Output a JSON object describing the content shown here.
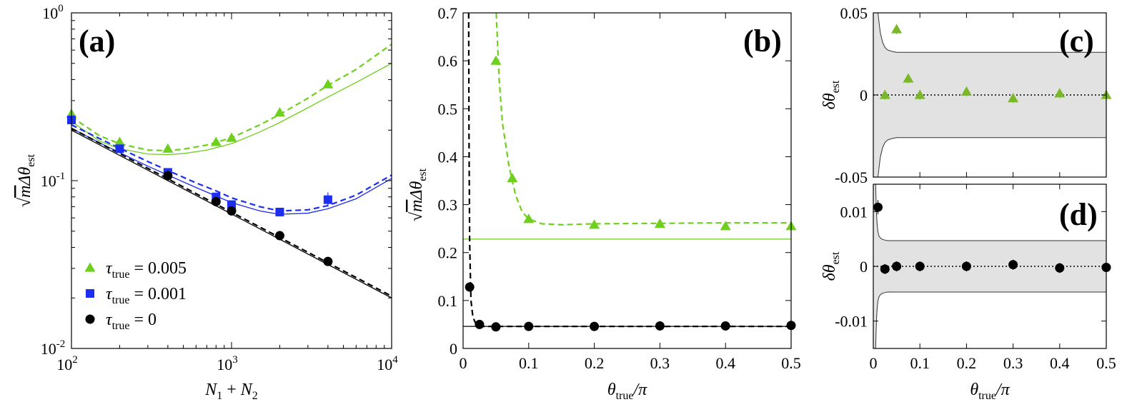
{
  "colors": {
    "green": "#6ecf1c",
    "blue": "#1c2ef0",
    "black": "#000000",
    "band": "#e2e2e2"
  },
  "chart_data": [
    {
      "panel": "(a)",
      "type": "scatter",
      "xscale": "log",
      "yscale": "log",
      "xlim": [
        100,
        10000
      ],
      "ylim": [
        0.01,
        1
      ],
      "x_ticks": [
        {
          "base": "10",
          "exp": "2"
        },
        {
          "base": "10",
          "exp": "3"
        },
        {
          "base": "10",
          "exp": "4"
        }
      ],
      "y_ticks": [
        {
          "base": "10",
          "exp": "-2"
        },
        {
          "base": "10",
          "exp": "-1"
        },
        {
          "base": "10",
          "exp": "0"
        }
      ],
      "xlabel": "N1 + N2",
      "ylabel": "√m Δθest",
      "legend": [
        {
          "label": "τtrue = 0.005",
          "var": "τ",
          "sub": "true",
          "rest": " = 0.005",
          "marker": "triangle",
          "color": "green"
        },
        {
          "label": "τtrue = 0.001",
          "var": "τ",
          "sub": "true",
          "rest": " = 0.001",
          "marker": "square",
          "color": "blue"
        },
        {
          "label": "τtrue = 0",
          "var": "τ",
          "sub": "true",
          "rest": " = 0",
          "marker": "circle",
          "color": "black"
        }
      ],
      "series": [
        {
          "name": "τtrue = 0.005",
          "marker": "triangle",
          "color": "green",
          "x": [
            100,
            200,
            400,
            800,
            1000,
            2000,
            4000
          ],
          "y": [
            0.25,
            0.17,
            0.155,
            0.17,
            0.18,
            0.255,
            0.375
          ],
          "fit_dashed": {
            "x": [
              100,
              150,
              200,
              300,
              400,
              500,
              700,
              1000,
              1500,
              2000,
              3000,
              4000,
              6000,
              10000
            ],
            "y": [
              0.24,
              0.185,
              0.166,
              0.152,
              0.151,
              0.154,
              0.163,
              0.18,
              0.215,
              0.248,
              0.31,
              0.37,
              0.46,
              0.65
            ]
          },
          "fit_solid": {
            "x": [
              100,
              150,
              200,
              300,
              400,
              500,
              700,
              1000,
              1500,
              2000,
              3000,
              4000,
              6000,
              10000
            ],
            "y": [
              0.225,
              0.172,
              0.155,
              0.144,
              0.143,
              0.145,
              0.152,
              0.166,
              0.195,
              0.222,
              0.272,
              0.315,
              0.385,
              0.5
            ]
          }
        },
        {
          "name": "τtrue = 0.001",
          "marker": "square",
          "color": "blue",
          "x": [
            100,
            200,
            400,
            800,
            1000,
            2000,
            4000
          ],
          "y": [
            0.23,
            0.155,
            0.112,
            0.08,
            0.072,
            0.065,
            0.077
          ],
          "fit_dashed": {
            "x": [
              100,
              150,
              200,
              300,
              400,
              600,
              800,
              1000,
              1500,
              2000,
              3000,
              4000,
              6000,
              10000
            ],
            "y": [
              0.215,
              0.178,
              0.156,
              0.13,
              0.115,
              0.097,
              0.087,
              0.079,
              0.07,
              0.066,
              0.067,
              0.071,
              0.082,
              0.108
            ]
          },
          "fit_solid": {
            "x": [
              100,
              150,
              200,
              300,
              400,
              600,
              800,
              1000,
              1500,
              2000,
              3000,
              4000,
              6000,
              10000
            ],
            "y": [
              0.205,
              0.168,
              0.147,
              0.122,
              0.108,
              0.091,
              0.081,
              0.074,
              0.066,
              0.063,
              0.064,
              0.068,
              0.078,
              0.103
            ]
          }
        },
        {
          "name": "τtrue = 0",
          "marker": "circle",
          "color": "black",
          "x": [
            400,
            800,
            1000,
            2000,
            4000
          ],
          "y": [
            0.107,
            0.075,
            0.066,
            0.047,
            0.033
          ],
          "fit_dashed": {
            "x": [
              100,
              10000
            ],
            "y": [
              0.205,
              0.0205
            ]
          },
          "fit_solid": {
            "x": [
              100,
              10000
            ],
            "y": [
              0.2,
              0.02
            ]
          }
        }
      ]
    },
    {
      "panel": "(b)",
      "type": "scatter",
      "xlim": [
        0,
        0.5
      ],
      "ylim": [
        0,
        0.7
      ],
      "x_ticks": [
        "0",
        "0.1",
        "0.2",
        "0.3",
        "0.4",
        "0.5"
      ],
      "y_ticks": [
        "0",
        "0.1",
        "0.2",
        "0.3",
        "0.4",
        "0.5",
        "0.6",
        "0.7"
      ],
      "xlabel": "θtrue/π",
      "ylabel": "√m Δθest",
      "series": [
        {
          "name": "green",
          "marker": "triangle",
          "color": "green",
          "x": [
            0.05,
            0.075,
            0.1,
            0.2,
            0.3,
            0.4,
            0.5
          ],
          "y": [
            0.6,
            0.355,
            0.27,
            0.258,
            0.26,
            0.255,
            0.255
          ],
          "fit_dashed": {
            "x": [
              0.0505,
              0.055,
              0.06,
              0.07,
              0.08,
              0.09,
              0.1,
              0.12,
              0.15,
              0.2,
              0.3,
              0.4,
              0.5
            ],
            "y": [
              0.7,
              0.56,
              0.47,
              0.38,
              0.32,
              0.285,
              0.27,
              0.26,
              0.258,
              0.26,
              0.261,
              0.262,
              0.262
            ]
          },
          "fit_solid": {
            "x": [
              0,
              0.5
            ],
            "y": [
              0.228,
              0.228
            ]
          }
        },
        {
          "name": "black",
          "marker": "circle",
          "color": "black",
          "x": [
            0.01,
            0.025,
            0.05,
            0.1,
            0.2,
            0.3,
            0.4,
            0.5
          ],
          "y": [
            0.128,
            0.05,
            0.045,
            0.046,
            0.046,
            0.047,
            0.047,
            0.048
          ],
          "fit_dashed": {
            "x": [
              0.0085,
              0.009,
              0.01,
              0.012,
              0.015,
              0.02,
              0.025,
              0.03,
              0.05,
              0.1,
              0.2,
              0.3,
              0.4,
              0.5
            ],
            "y": [
              0.7,
              0.45,
              0.22,
              0.1,
              0.065,
              0.05,
              0.047,
              0.046,
              0.046,
              0.046,
              0.046,
              0.046,
              0.046,
              0.046
            ]
          },
          "fit_solid": {
            "x": [
              0,
              0.5
            ],
            "y": [
              0.046,
              0.046
            ]
          }
        }
      ]
    },
    {
      "panel": "(c)",
      "type": "scatter",
      "xlim": [
        0,
        0.5
      ],
      "ylim": [
        -0.05,
        0.05
      ],
      "x_ticks": [],
      "y_ticks": [
        "-0.05",
        "0",
        "0.05"
      ],
      "ylabel": "δθest",
      "band_edge": {
        "x": [
          0.01,
          0.012,
          0.015,
          0.02,
          0.025,
          0.03,
          0.035,
          0.04,
          0.05,
          0.07,
          0.1,
          0.5
        ],
        "y": [
          0.05,
          0.045,
          0.038,
          0.032,
          0.029,
          0.0275,
          0.027,
          0.0265,
          0.026,
          0.026,
          0.026,
          0.026
        ]
      },
      "series": [
        {
          "name": "green",
          "marker": "triangle",
          "color": "green",
          "x": [
            0.025,
            0.05,
            0.075,
            0.1,
            0.2,
            0.3,
            0.4,
            0.5
          ],
          "y": [
            0.0,
            0.04,
            0.01,
            0.0,
            0.002,
            -0.002,
            0.001,
            0.0
          ]
        }
      ]
    },
    {
      "panel": "(d)",
      "type": "scatter",
      "xlim": [
        0,
        0.5
      ],
      "ylim": [
        -0.015,
        0.015
      ],
      "x_ticks": [
        "0",
        "0.1",
        "0.2",
        "0.3",
        "0.4",
        "0.5"
      ],
      "y_ticks": [
        "-0.01",
        "0",
        "0.01"
      ],
      "xlabel": "θtrue/π",
      "ylabel": "δθest",
      "band_edge": {
        "x": [
          0.005,
          0.006,
          0.007,
          0.008,
          0.009,
          0.01,
          0.012,
          0.015,
          0.02,
          0.025,
          0.03,
          0.04,
          0.06,
          0.1,
          0.5
        ],
        "y": [
          0.015,
          0.012,
          0.0095,
          0.008,
          0.007,
          0.0063,
          0.0056,
          0.0052,
          0.0049,
          0.0048,
          0.0047,
          0.0047,
          0.0047,
          0.0047,
          0.0047
        ]
      },
      "series": [
        {
          "name": "black",
          "marker": "circle",
          "color": "black",
          "x": [
            0.01,
            0.025,
            0.05,
            0.1,
            0.2,
            0.3,
            0.4,
            0.5
          ],
          "y": [
            0.0108,
            -0.0005,
            0.0,
            0.0,
            0.0,
            0.0003,
            -0.0003,
            -0.0002
          ]
        }
      ]
    }
  ]
}
